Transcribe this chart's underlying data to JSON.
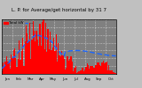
{
  "title": "L. P. for Average/get horizontal by 31 7",
  "legend_bar_label": "Total kW",
  "legend_line_label": "---",
  "bar_color": "#ff0000",
  "line_color": "#1a66ff",
  "background_color": "#c0c0c0",
  "plot_bg_color": "#808080",
  "grid_color": "#ffffff",
  "ylim": [
    0,
    14
  ],
  "ytick_labels": [
    "14.0",
    "12.0",
    "10.0",
    "8.0",
    "6.0",
    "4.0",
    "2.0",
    "0.0"
  ],
  "yticks": [
    14,
    12,
    10,
    8,
    6,
    4,
    2,
    0
  ],
  "title_fontsize": 4.0,
  "tick_fontsize": 3.5,
  "n_bars": 100
}
